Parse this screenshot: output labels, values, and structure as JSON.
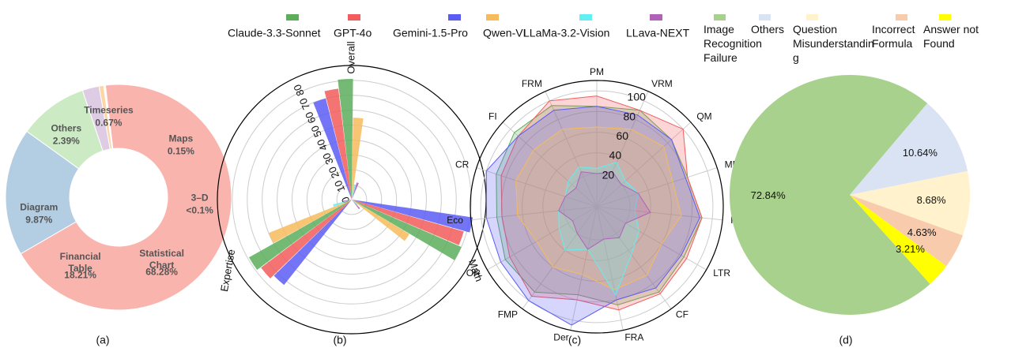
{
  "chart_data": [
    {
      "type": "donut",
      "caption": "(a)",
      "categories": [
        "Timeseries",
        "Maps",
        "3–D",
        "Statistical Chart",
        "Financial Table",
        "Diagram",
        "Others"
      ],
      "values": [
        0.67,
        0.15,
        0.1,
        68.28,
        18.21,
        9.87,
        2.39
      ],
      "value_labels": [
        "0.67%",
        "0.15%",
        "<0.1%",
        "68.28%",
        "18.21%",
        "9.87%",
        "2.39%"
      ],
      "colors": [
        "#fdd6a6",
        "#ffffcc",
        "#e5d8bd",
        "#f9b4ae",
        "#b3cde3",
        "#ccebc5",
        "#decbe4"
      ]
    },
    {
      "type": "polar_bar",
      "caption": "(b)",
      "categories": [
        "Overall",
        "Math",
        "Expertise"
      ],
      "series": [
        {
          "name": "Claude-3.3-Sonnet",
          "color": "#5cae5c",
          "values": [
            81,
            80,
            79
          ]
        },
        {
          "name": "GPT-4o",
          "color": "#f25c5c",
          "values": [
            75,
            78,
            76
          ]
        },
        {
          "name": "Gemini-1.5-Pro",
          "color": "#5c5cf5",
          "values": [
            70,
            82,
            73
          ]
        },
        {
          "name": "Qwen-VL",
          "color": "#f7bb5c",
          "values": [
            55,
            45,
            60
          ]
        },
        {
          "name": "LLaMa-3.2-Vision",
          "color": "#62eef2",
          "values": [
            10,
            5,
            13
          ]
        },
        {
          "name": "LLava-NEXT",
          "color": "#b062b8",
          "values": [
            12,
            8,
            6
          ]
        }
      ],
      "ylim": [
        0,
        90
      ],
      "yticks": [
        0,
        10,
        20,
        30,
        40,
        50,
        60,
        70,
        80
      ],
      "grid": true,
      "legend": "top"
    },
    {
      "type": "radar",
      "caption": "(c)",
      "categories": [
        "PM",
        "VRM",
        "QM",
        "MR",
        "Inv",
        "LTR",
        "CF",
        "FRA",
        "Der",
        "FMP",
        "OR",
        "Eco",
        "CR",
        "FI",
        "FRM"
      ],
      "series": [
        {
          "color": "#5cae5c",
          "values": [
            85,
            90,
            85,
            80,
            90,
            85,
            90,
            85,
            75,
            90,
            90,
            85,
            90,
            95,
            95
          ]
        },
        {
          "color": "#f25c5c",
          "values": [
            95,
            90,
            100,
            80,
            90,
            88,
            92,
            90,
            80,
            95,
            85,
            80,
            85,
            90,
            100
          ]
        },
        {
          "color": "#5c5cf5",
          "values": [
            85,
            85,
            85,
            78,
            88,
            82,
            85,
            80,
            105,
            100,
            95,
            95,
            100,
            90,
            90
          ]
        },
        {
          "color": "#f7bb5c",
          "values": [
            65,
            70,
            75,
            65,
            70,
            60,
            70,
            70,
            55,
            60,
            55,
            65,
            70,
            70,
            70
          ]
        },
        {
          "color": "#62eef2",
          "values": [
            25,
            35,
            25,
            30,
            25,
            35,
            45,
            75,
            30,
            40,
            30,
            25,
            20,
            25,
            30
          ]
        },
        {
          "color": "#b062b8",
          "values": [
            20,
            25,
            20,
            30,
            40,
            20,
            25,
            20,
            30,
            20,
            15,
            25,
            20,
            15,
            25
          ]
        }
      ],
      "ylim": [
        -12,
        110
      ],
      "yticks": [
        20,
        40,
        60,
        80,
        100
      ],
      "grid": true
    },
    {
      "type": "pie",
      "caption": "(d)",
      "categories": [
        "Image Recognition Failure",
        "Others",
        "Question Misunderstanding",
        "Incorrect Formula",
        "Answer not Found"
      ],
      "values": [
        72.84,
        10.64,
        8.68,
        4.63,
        3.21
      ],
      "value_labels": [
        "72.84%",
        "10.64%",
        "8.68%",
        "4.63%",
        "3.21%"
      ],
      "colors": [
        "#a9d18e",
        "#dae3f3",
        "#fff2cc",
        "#f8cbad",
        "#ffff00"
      ],
      "legend": "top"
    }
  ]
}
